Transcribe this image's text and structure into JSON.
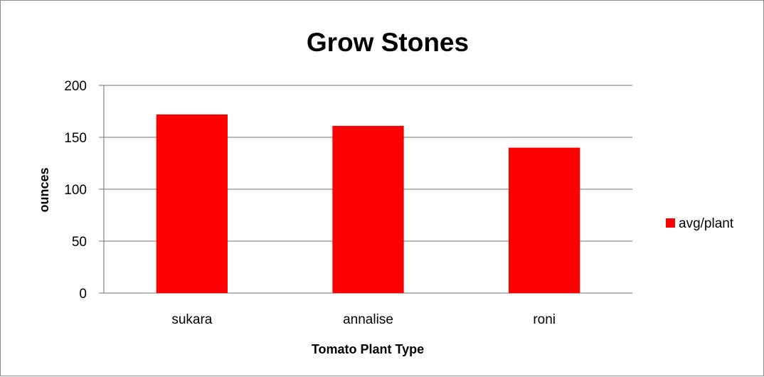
{
  "chart_data": {
    "type": "bar",
    "title": "Grow Stones",
    "xlabel": "Tomato Plant Type",
    "ylabel": "ounces",
    "categories": [
      "sukara",
      "annalise",
      "roni"
    ],
    "series": [
      {
        "name": "avg/plant",
        "values": [
          172,
          161,
          140
        ],
        "color": "#ff0000"
      }
    ],
    "ylim": [
      0,
      200
    ],
    "yticks": [
      0,
      50,
      100,
      150,
      200
    ],
    "grid": true,
    "legend": "right"
  }
}
